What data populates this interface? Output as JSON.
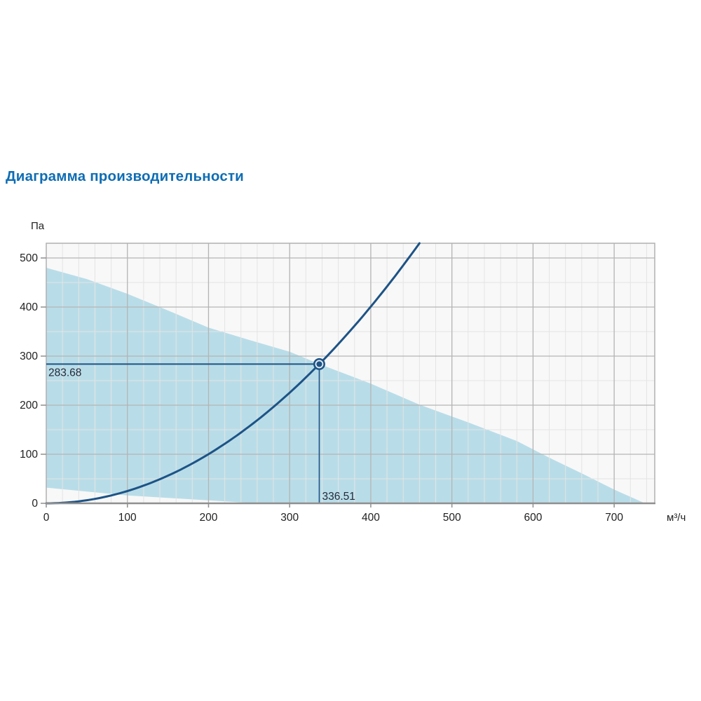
{
  "page": {
    "title": "Диаграмма производительности"
  },
  "chart_data": {
    "type": "area",
    "title": "Диаграмма производительности",
    "y_unit": "Па",
    "x_unit": "м³/ч",
    "x_ticks": [
      0,
      100,
      200,
      300,
      400,
      500,
      600,
      700
    ],
    "y_ticks": [
      0,
      100,
      200,
      300,
      400,
      500
    ],
    "x_minor_step": 20,
    "y_minor_step": 50,
    "x_max": 750,
    "y_max": 530,
    "envelope_upper": [
      [
        0,
        480
      ],
      [
        50,
        457
      ],
      [
        100,
        427
      ],
      [
        150,
        393
      ],
      [
        200,
        358
      ],
      [
        250,
        333
      ],
      [
        300,
        309
      ],
      [
        336.5,
        284
      ],
      [
        400,
        244
      ],
      [
        460,
        201
      ],
      [
        520,
        165
      ],
      [
        580,
        127
      ],
      [
        620,
        93
      ],
      [
        660,
        61
      ],
      [
        700,
        28
      ],
      [
        738,
        0
      ]
    ],
    "envelope_lower_return": [
      [
        260,
        0
      ],
      [
        210,
        5
      ],
      [
        100,
        16
      ],
      [
        0,
        32
      ]
    ],
    "fan_curve": {
      "type": "parabola_through_origin",
      "coefficient": 0.0025052,
      "x_start": 0,
      "x_end": 460
    },
    "operating_point": {
      "flow": 336.51,
      "pressure": 283.68,
      "flow_label": "336.51",
      "pressure_label": "283.68"
    },
    "colors": {
      "title_blue": "#0e6db4",
      "curve_blue": "#1d5386",
      "envelope_fill": "#b9dde8",
      "plot_bg": "#f8f8f8",
      "grid_minor": "#e4e4e4",
      "grid_major": "#b4b4b4",
      "plot_border": "#b0b0b0",
      "axis_line": "#8f8f8f",
      "tick_text": "#1f1f1f",
      "crosshair_label_text": "#232a3b",
      "marker_ring": "#e9eff6"
    }
  }
}
